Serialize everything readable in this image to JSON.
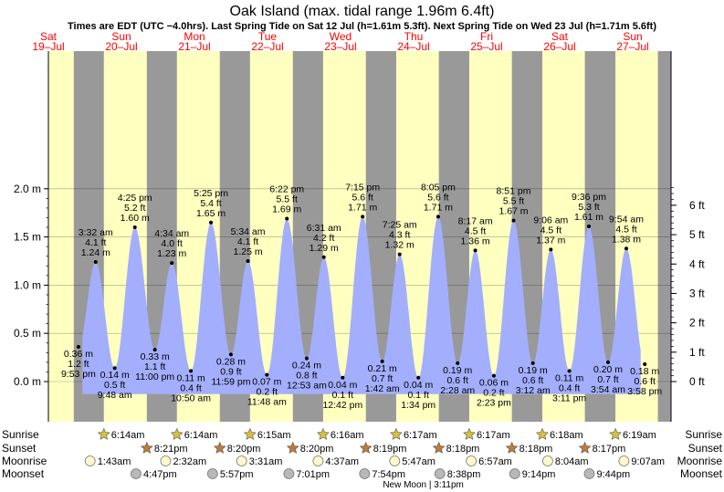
{
  "chart_data": {
    "type": "area",
    "title": "Oak Island (max. tidal range 1.96m 6.4ft)",
    "subtitle": "Times are EDT (UTC −4.0hrs). Last Spring Tide on Sat 12 Jul (h=1.61m 5.3ft). Next Spring Tide on Wed 23 Jul (h=1.71m 5.6ft)",
    "xlabel": "",
    "ylabel": "",
    "units_left": "m",
    "units_right": "ft",
    "ylim": [
      -0.08,
      2.08
    ],
    "xlim": [
      "2025-07-19 12:00",
      "2025-07-28 06:00"
    ],
    "y_ticks_left": [
      "2.0 m",
      "1.5 m",
      "1.0 m",
      "0.5 m",
      "0.0 m"
    ],
    "y_tick_values_left": [
      2.0,
      1.5,
      1.0,
      0.5,
      0.0
    ],
    "y_ticks_right": [
      "6 ft",
      "5 ft",
      "4 ft",
      "3 ft",
      "2 ft",
      "1 ft",
      "0 ft"
    ],
    "y_tick_values_right": [
      6,
      5,
      4,
      3,
      2,
      1,
      0
    ],
    "grid": true,
    "colors": {
      "tide": "#a3aefc",
      "day": "#ffffc0",
      "night": "#999999",
      "date_red": "#ff0000",
      "text": "#000000"
    },
    "days": [
      {
        "weekday": "Sat",
        "date": "19–Jul"
      },
      {
        "weekday": "Sun",
        "date": "20–Jul"
      },
      {
        "weekday": "Mon",
        "date": "21–Jul"
      },
      {
        "weekday": "Tue",
        "date": "22–Jul"
      },
      {
        "weekday": "Wed",
        "date": "23–Jul"
      },
      {
        "weekday": "Thu",
        "date": "24–Jul"
      },
      {
        "weekday": "Fri",
        "date": "25–Jul"
      },
      {
        "weekday": "Sat",
        "date": "26–Jul"
      },
      {
        "weekday": "Sun",
        "date": "27–Jul"
      }
    ],
    "day_periods": [
      {
        "sunrise": "2025-07-19 06:13",
        "sunset": "2025-07-19 20:21"
      },
      {
        "sunrise": "2025-07-20 06:14",
        "sunset": "2025-07-20 20:21"
      },
      {
        "sunrise": "2025-07-21 06:14",
        "sunset": "2025-07-21 20:20"
      },
      {
        "sunrise": "2025-07-22 06:15",
        "sunset": "2025-07-22 20:20"
      },
      {
        "sunrise": "2025-07-23 06:16",
        "sunset": "2025-07-23 20:19"
      },
      {
        "sunrise": "2025-07-24 06:17",
        "sunset": "2025-07-24 20:18"
      },
      {
        "sunrise": "2025-07-25 06:17",
        "sunset": "2025-07-25 20:18"
      },
      {
        "sunrise": "2025-07-26 06:18",
        "sunset": "2025-07-26 20:17"
      },
      {
        "sunrise": "2025-07-27 06:19",
        "sunset": "2025-07-27 20:17"
      }
    ],
    "tides": [
      {
        "time": "2025-07-19 21:53",
        "label": "9:53 pm",
        "m": 0.36,
        "m_label": "0.36 m",
        "ft_label": "1.2 ft",
        "type": "low"
      },
      {
        "time": "2025-07-20 03:32",
        "label": "3:32 am",
        "m": 1.24,
        "m_label": "1.24 m",
        "ft_label": "4.1 ft",
        "type": "high"
      },
      {
        "time": "2025-07-20 09:48",
        "label": "9:48 am",
        "m": 0.14,
        "m_label": "0.14 m",
        "ft_label": "0.5 ft",
        "type": "low"
      },
      {
        "time": "2025-07-20 16:25",
        "label": "4:25 pm",
        "m": 1.6,
        "m_label": "1.60 m",
        "ft_label": "5.2 ft",
        "type": "high"
      },
      {
        "time": "2025-07-20 23:00",
        "label": "11:00 pm",
        "m": 0.33,
        "m_label": "0.33 m",
        "ft_label": "1.1 ft",
        "type": "low"
      },
      {
        "time": "2025-07-21 04:34",
        "label": "4:34 am",
        "m": 1.23,
        "m_label": "1.23 m",
        "ft_label": "4.0 ft",
        "type": "high"
      },
      {
        "time": "2025-07-21 10:50",
        "label": "10:50 am",
        "m": 0.11,
        "m_label": "0.11 m",
        "ft_label": "0.4 ft",
        "type": "low"
      },
      {
        "time": "2025-07-21 17:25",
        "label": "5:25 pm",
        "m": 1.65,
        "m_label": "1.65 m",
        "ft_label": "5.4 ft",
        "type": "high"
      },
      {
        "time": "2025-07-21 23:59",
        "label": "11:59 pm",
        "m": 0.28,
        "m_label": "0.28 m",
        "ft_label": "0.9 ft",
        "type": "low"
      },
      {
        "time": "2025-07-22 05:34",
        "label": "5:34 am",
        "m": 1.25,
        "m_label": "1.25 m",
        "ft_label": "4.1 ft",
        "type": "high"
      },
      {
        "time": "2025-07-22 11:48",
        "label": "11:48 am",
        "m": 0.07,
        "m_label": "0.07 m",
        "ft_label": "0.2 ft",
        "type": "low"
      },
      {
        "time": "2025-07-22 18:22",
        "label": "6:22 pm",
        "m": 1.69,
        "m_label": "1.69 m",
        "ft_label": "5.5 ft",
        "type": "high"
      },
      {
        "time": "2025-07-23 00:53",
        "label": "12:53 am",
        "m": 0.24,
        "m_label": "0.24 m",
        "ft_label": "0.8 ft",
        "type": "low"
      },
      {
        "time": "2025-07-23 06:31",
        "label": "6:31 am",
        "m": 1.29,
        "m_label": "1.29 m",
        "ft_label": "4.2 ft",
        "type": "high"
      },
      {
        "time": "2025-07-23 12:42",
        "label": "12:42 pm",
        "m": 0.04,
        "m_label": "0.04 m",
        "ft_label": "0.1 ft",
        "type": "low"
      },
      {
        "time": "2025-07-23 19:15",
        "label": "7:15 pm",
        "m": 1.71,
        "m_label": "1.71 m",
        "ft_label": "5.6 ft",
        "type": "high"
      },
      {
        "time": "2025-07-24 01:42",
        "label": "1:42 am",
        "m": 0.21,
        "m_label": "0.21 m",
        "ft_label": "0.7 ft",
        "type": "low"
      },
      {
        "time": "2025-07-24 07:25",
        "label": "7:25 am",
        "m": 1.32,
        "m_label": "1.32 m",
        "ft_label": "4.3 ft",
        "type": "high"
      },
      {
        "time": "2025-07-24 13:34",
        "label": "1:34 pm",
        "m": 0.04,
        "m_label": "0.04 m",
        "ft_label": "0.1 ft",
        "type": "low"
      },
      {
        "time": "2025-07-24 20:05",
        "label": "8:05 pm",
        "m": 1.71,
        "m_label": "1.71 m",
        "ft_label": "5.6 ft",
        "type": "high"
      },
      {
        "time": "2025-07-25 02:28",
        "label": "2:28 am",
        "m": 0.19,
        "m_label": "0.19 m",
        "ft_label": "0.6 ft",
        "type": "low"
      },
      {
        "time": "2025-07-25 08:17",
        "label": "8:17 am",
        "m": 1.36,
        "m_label": "1.36 m",
        "ft_label": "4.5 ft",
        "type": "high"
      },
      {
        "time": "2025-07-25 14:23",
        "label": "2:23 pm",
        "m": 0.06,
        "m_label": "0.06 m",
        "ft_label": "0.2 ft",
        "type": "low"
      },
      {
        "time": "2025-07-25 20:51",
        "label": "8:51 pm",
        "m": 1.67,
        "m_label": "1.67 m",
        "ft_label": "5.5 ft",
        "type": "high"
      },
      {
        "time": "2025-07-26 03:12",
        "label": "3:12 am",
        "m": 0.19,
        "m_label": "0.19 m",
        "ft_label": "0.6 ft",
        "type": "low"
      },
      {
        "time": "2025-07-26 09:06",
        "label": "9:06 am",
        "m": 1.37,
        "m_label": "1.37 m",
        "ft_label": "4.5 ft",
        "type": "high"
      },
      {
        "time": "2025-07-26 15:11",
        "label": "3:11 pm",
        "m": 0.11,
        "m_label": "0.11 m",
        "ft_label": "0.4 ft",
        "type": "low"
      },
      {
        "time": "2025-07-26 21:36",
        "label": "9:36 pm",
        "m": 1.61,
        "m_label": "1.61 m",
        "ft_label": "5.3 ft",
        "type": "high"
      },
      {
        "time": "2025-07-27 03:54",
        "label": "3:54 am",
        "m": 0.2,
        "m_label": "0.20 m",
        "ft_label": "0.7 ft",
        "type": "low"
      },
      {
        "time": "2025-07-27 09:54",
        "label": "9:54 am",
        "m": 1.38,
        "m_label": "1.38 m",
        "ft_label": "4.5 ft",
        "type": "high"
      },
      {
        "time": "2025-07-27 15:58",
        "label": "3:58 pm",
        "m": 0.18,
        "m_label": "0.18 m",
        "ft_label": "0.6 ft",
        "type": "low"
      }
    ],
    "footer_labels": {
      "sunrise": "Sunrise",
      "sunset": "Sunset",
      "moonrise": "Moonrise",
      "moonset": "Moonset"
    },
    "sunrise": [
      {
        "time": "2025-07-20 06:14",
        "label": "6:14am"
      },
      {
        "time": "2025-07-21 06:14",
        "label": "6:14am"
      },
      {
        "time": "2025-07-22 06:15",
        "label": "6:15am"
      },
      {
        "time": "2025-07-23 06:16",
        "label": "6:16am"
      },
      {
        "time": "2025-07-24 06:17",
        "label": "6:17am"
      },
      {
        "time": "2025-07-25 06:17",
        "label": "6:17am"
      },
      {
        "time": "2025-07-26 06:18",
        "label": "6:18am"
      },
      {
        "time": "2025-07-27 06:19",
        "label": "6:19am"
      }
    ],
    "sunset": [
      {
        "time": "2025-07-20 20:21",
        "label": "8:21pm"
      },
      {
        "time": "2025-07-21 20:20",
        "label": "8:20pm"
      },
      {
        "time": "2025-07-22 20:20",
        "label": "8:20pm"
      },
      {
        "time": "2025-07-23 20:19",
        "label": "8:19pm"
      },
      {
        "time": "2025-07-24 20:18",
        "label": "8:18pm"
      },
      {
        "time": "2025-07-25 20:18",
        "label": "8:18pm"
      },
      {
        "time": "2025-07-26 20:17",
        "label": "8:17pm"
      }
    ],
    "moonrise": [
      {
        "time": "2025-07-20 01:43",
        "label": "1:43am"
      },
      {
        "time": "2025-07-21 02:32",
        "label": "2:32am"
      },
      {
        "time": "2025-07-22 03:31",
        "label": "3:31am"
      },
      {
        "time": "2025-07-23 04:37",
        "label": "4:37am"
      },
      {
        "time": "2025-07-24 05:47",
        "label": "5:47am"
      },
      {
        "time": "2025-07-25 06:57",
        "label": "6:57am"
      },
      {
        "time": "2025-07-26 08:04",
        "label": "8:04am"
      },
      {
        "time": "2025-07-27 09:07",
        "label": "9:07am"
      }
    ],
    "moonset": [
      {
        "time": "2025-07-20 16:47",
        "label": "4:47pm"
      },
      {
        "time": "2025-07-21 17:57",
        "label": "5:57pm"
      },
      {
        "time": "2025-07-22 19:01",
        "label": "7:01pm"
      },
      {
        "time": "2025-07-23 19:54",
        "label": "7:54pm"
      },
      {
        "time": "2025-07-24 20:38",
        "label": "8:38pm"
      },
      {
        "time": "2025-07-25 21:14",
        "label": "9:14pm"
      },
      {
        "time": "2025-07-26 21:44",
        "label": "9:44pm"
      }
    ],
    "moon_phase_note": {
      "time": "2025-07-24 15:11",
      "label": "New Moon | 3:11pm"
    }
  }
}
